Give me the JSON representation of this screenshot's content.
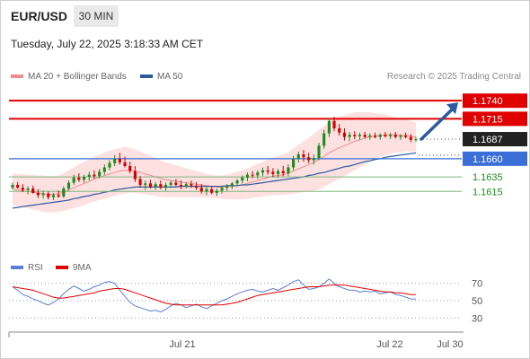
{
  "header": {
    "pair": "EUR/USD",
    "timeframe": "30 MIN",
    "datetime": "Tuesday, July 22, 2025 3:18:33 AM CET"
  },
  "legend": {
    "items": [
      {
        "label": "MA 20 + Bollinger Bands",
        "color": "#f08c8c"
      },
      {
        "label": "MA 50",
        "color": "#2b5aa0"
      }
    ],
    "credit": "Research © 2025 Trading Central"
  },
  "rsi_legend": {
    "items": [
      {
        "label": "RSI",
        "color": "#5b7fd6"
      },
      {
        "label": "9MA",
        "color": "#e00000"
      }
    ]
  },
  "colors": {
    "resistance": "#e00000",
    "pivot": "#3a6fd8",
    "support": "#1f8a1f",
    "bull_candle": "#1f8a1f",
    "bear_candle": "#d00000",
    "band_fill": "#fde0e0",
    "ma50": "#2b5aa0",
    "current": "#222222",
    "arrow": "#2b5aa0"
  },
  "chart_data": [
    {
      "type": "candlestick",
      "title": "EUR/USD 30 MIN",
      "x_ticks": [
        "Jul 21",
        "Jul 22",
        "Jul 30"
      ],
      "ylim": [
        1.153,
        1.176
      ],
      "levels": [
        {
          "value": 1.174,
          "label": "1.1740",
          "kind": "resistance"
        },
        {
          "value": 1.1715,
          "label": "1.1715",
          "kind": "resistance"
        },
        {
          "value": 1.1687,
          "label": "1.1687",
          "kind": "current"
        },
        {
          "value": 1.166,
          "label": "1.1660",
          "kind": "pivot"
        },
        {
          "value": 1.1635,
          "label": "1.1635",
          "kind": "support"
        },
        {
          "value": 1.1615,
          "label": "1.1615",
          "kind": "support"
        }
      ],
      "candles": [
        [
          1.162,
          1.1627,
          1.1618,
          1.1624
        ],
        [
          1.1624,
          1.1628,
          1.1619,
          1.162
        ],
        [
          1.162,
          1.1625,
          1.1614,
          1.1617
        ],
        [
          1.1617,
          1.1622,
          1.1611,
          1.1619
        ],
        [
          1.1619,
          1.1623,
          1.1612,
          1.1613
        ],
        [
          1.1613,
          1.1618,
          1.1606,
          1.161
        ],
        [
          1.161,
          1.1616,
          1.1605,
          1.1612
        ],
        [
          1.1612,
          1.1615,
          1.1604,
          1.1607
        ],
        [
          1.1607,
          1.1613,
          1.1603,
          1.161
        ],
        [
          1.161,
          1.1616,
          1.1606,
          1.1608
        ],
        [
          1.1608,
          1.1622,
          1.1606,
          1.1619
        ],
        [
          1.1619,
          1.163,
          1.1616,
          1.1627
        ],
        [
          1.1627,
          1.1638,
          1.1624,
          1.1634
        ],
        [
          1.1634,
          1.164,
          1.1628,
          1.1631
        ],
        [
          1.1631,
          1.1638,
          1.1627,
          1.1635
        ],
        [
          1.1635,
          1.1642,
          1.163,
          1.1638
        ],
        [
          1.1638,
          1.1644,
          1.1632,
          1.1636
        ],
        [
          1.1636,
          1.1646,
          1.1633,
          1.1642
        ],
        [
          1.1642,
          1.1652,
          1.1638,
          1.1648
        ],
        [
          1.1648,
          1.1658,
          1.1644,
          1.1654
        ],
        [
          1.1654,
          1.1665,
          1.165,
          1.166
        ],
        [
          1.166,
          1.1668,
          1.1652,
          1.1655
        ],
        [
          1.1655,
          1.1663,
          1.1648,
          1.165
        ],
        [
          1.165,
          1.1656,
          1.164,
          1.1643
        ],
        [
          1.1643,
          1.165,
          1.1628,
          1.1632
        ],
        [
          1.1632,
          1.1636,
          1.162,
          1.1624
        ],
        [
          1.1624,
          1.163,
          1.1617,
          1.1626
        ],
        [
          1.1626,
          1.1631,
          1.1619,
          1.1621
        ],
        [
          1.1621,
          1.1628,
          1.1617,
          1.1625
        ],
        [
          1.1625,
          1.163,
          1.1618,
          1.162
        ],
        [
          1.162,
          1.1627,
          1.1616,
          1.1624
        ],
        [
          1.1624,
          1.163,
          1.162,
          1.1627
        ],
        [
          1.1627,
          1.1632,
          1.1622,
          1.1624
        ],
        [
          1.1624,
          1.163,
          1.1618,
          1.1622
        ],
        [
          1.1622,
          1.1628,
          1.1619,
          1.1625
        ],
        [
          1.1625,
          1.163,
          1.162,
          1.1623
        ],
        [
          1.1623,
          1.1628,
          1.1617,
          1.162
        ],
        [
          1.162,
          1.1625,
          1.1612,
          1.1615
        ],
        [
          1.1615,
          1.1621,
          1.161,
          1.1618
        ],
        [
          1.1618,
          1.1622,
          1.1611,
          1.1613
        ],
        [
          1.1613,
          1.1619,
          1.1609,
          1.1616
        ],
        [
          1.1616,
          1.1623,
          1.1612,
          1.162
        ],
        [
          1.162,
          1.1625,
          1.1616,
          1.1622
        ],
        [
          1.1622,
          1.1628,
          1.1618,
          1.1626
        ],
        [
          1.1626,
          1.1632,
          1.1622,
          1.163
        ],
        [
          1.163,
          1.1637,
          1.1626,
          1.1634
        ],
        [
          1.1634,
          1.1641,
          1.1629,
          1.1638
        ],
        [
          1.1638,
          1.1643,
          1.1633,
          1.1637
        ],
        [
          1.1637,
          1.1644,
          1.1632,
          1.1641
        ],
        [
          1.1641,
          1.1648,
          1.1636,
          1.1644
        ],
        [
          1.1644,
          1.165,
          1.1638,
          1.1642
        ],
        [
          1.1642,
          1.1647,
          1.1635,
          1.1639
        ],
        [
          1.1639,
          1.1646,
          1.1634,
          1.1643
        ],
        [
          1.1643,
          1.165,
          1.1636,
          1.164
        ],
        [
          1.164,
          1.1652,
          1.1636,
          1.1648
        ],
        [
          1.1648,
          1.1664,
          1.1644,
          1.166
        ],
        [
          1.166,
          1.167,
          1.1655,
          1.1666
        ],
        [
          1.1666,
          1.1672,
          1.1656,
          1.1662
        ],
        [
          1.1662,
          1.1668,
          1.1654,
          1.1658
        ],
        [
          1.1658,
          1.1666,
          1.1652,
          1.1661
        ],
        [
          1.1661,
          1.1682,
          1.1658,
          1.1678
        ],
        [
          1.1678,
          1.17,
          1.1674,
          1.1695
        ],
        [
          1.1695,
          1.1716,
          1.169,
          1.1712
        ],
        [
          1.1712,
          1.1718,
          1.1698,
          1.1702
        ],
        [
          1.1702,
          1.1708,
          1.1692,
          1.1696
        ],
        [
          1.1696,
          1.1702,
          1.1685,
          1.169
        ],
        [
          1.169,
          1.1697,
          1.1684,
          1.1693
        ],
        [
          1.1693,
          1.1698,
          1.1687,
          1.1691
        ],
        [
          1.1691,
          1.1696,
          1.1686,
          1.1693
        ],
        [
          1.1693,
          1.1697,
          1.1688,
          1.169
        ],
        [
          1.169,
          1.1695,
          1.1686,
          1.1692
        ],
        [
          1.1692,
          1.1696,
          1.1688,
          1.169
        ],
        [
          1.169,
          1.1695,
          1.1686,
          1.1693
        ],
        [
          1.1693,
          1.1697,
          1.1689,
          1.1691
        ],
        [
          1.1691,
          1.1696,
          1.1687,
          1.1693
        ],
        [
          1.1693,
          1.1697,
          1.1688,
          1.169
        ],
        [
          1.169,
          1.1694,
          1.1686,
          1.1692
        ],
        [
          1.1692,
          1.1696,
          1.1688,
          1.169
        ],
        [
          1.169,
          1.1694,
          1.1683,
          1.1686
        ],
        [
          1.1686,
          1.169,
          1.1683,
          1.1687
        ]
      ],
      "ma20": [
        1.1618,
        1.1617,
        1.1616,
        1.1615,
        1.1614,
        1.1613,
        1.1612,
        1.1611,
        1.1611,
        1.1612,
        1.1614,
        1.1617,
        1.162,
        1.1623,
        1.1626,
        1.1629,
        1.1632,
        1.1634,
        1.1637,
        1.1639,
        1.1641,
        1.1643,
        1.1644,
        1.1644,
        1.1643,
        1.1641,
        1.1639,
        1.1637,
        1.1635,
        1.1633,
        1.1631,
        1.163,
        1.1629,
        1.1628,
        1.1627,
        1.1626,
        1.1625,
        1.1624,
        1.1623,
        1.1622,
        1.1621,
        1.1621,
        1.1621,
        1.1622,
        1.1623,
        1.1624,
        1.1626,
        1.1628,
        1.163,
        1.1632,
        1.1634,
        1.1636,
        1.1637,
        1.1638,
        1.164,
        1.1643,
        1.1646,
        1.1649,
        1.1652,
        1.1655,
        1.1659,
        1.1663,
        1.1668,
        1.1672,
        1.1675,
        1.1678,
        1.1681,
        1.1684,
        1.1686,
        1.1688,
        1.169,
        1.1691,
        1.1692,
        1.1693,
        1.1693,
        1.1693,
        1.1692,
        1.1692,
        1.1691,
        1.169
      ],
      "ma50": [
        1.1592,
        1.1593,
        1.1594,
        1.1595,
        1.1596,
        1.1597,
        1.1598,
        1.1599,
        1.16,
        1.1601,
        1.1602,
        1.1603,
        1.1605,
        1.1606,
        1.1608,
        1.1609,
        1.1611,
        1.1612,
        1.1614,
        1.1615,
        1.1617,
        1.1618,
        1.1619,
        1.162,
        1.1621,
        1.1621,
        1.1621,
        1.1621,
        1.1621,
        1.1621,
        1.1621,
        1.1621,
        1.1621,
        1.1622,
        1.1622,
        1.1622,
        1.1622,
        1.1622,
        1.1622,
        1.1622,
        1.1622,
        1.1622,
        1.1623,
        1.1623,
        1.1623,
        1.1624,
        1.1624,
        1.1625,
        1.1626,
        1.1627,
        1.1628,
        1.1629,
        1.163,
        1.1631,
        1.1632,
        1.1633,
        1.1634,
        1.1635,
        1.1637,
        1.1638,
        1.164,
        1.1641,
        1.1643,
        1.1645,
        1.1647,
        1.1649,
        1.165,
        1.1652,
        1.1654,
        1.1656,
        1.1657,
        1.1659,
        1.166,
        1.1662,
        1.1663,
        1.1664,
        1.1665,
        1.1666,
        1.1667,
        1.1668
      ],
      "band_width": [
        0.0022,
        0.0022,
        0.0023,
        0.0023,
        0.0024,
        0.0024,
        0.0025,
        0.0025,
        0.0025,
        0.0025,
        0.0026,
        0.0027,
        0.0028,
        0.0029,
        0.003,
        0.003,
        0.0031,
        0.0031,
        0.0032,
        0.0032,
        0.0032,
        0.0032,
        0.0032,
        0.0031,
        0.003,
        0.0029,
        0.0028,
        0.0027,
        0.0026,
        0.0025,
        0.0024,
        0.0023,
        0.0022,
        0.0021,
        0.002,
        0.0019,
        0.0018,
        0.0017,
        0.0016,
        0.0016,
        0.0016,
        0.0016,
        0.0017,
        0.0018,
        0.0019,
        0.002,
        0.0021,
        0.0022,
        0.0023,
        0.0024,
        0.0025,
        0.0026,
        0.0027,
        0.0028,
        0.0029,
        0.0031,
        0.0033,
        0.0035,
        0.0037,
        0.0039,
        0.0041,
        0.0042,
        0.0043,
        0.0043,
        0.0043,
        0.0042,
        0.0041,
        0.004,
        0.0038,
        0.0036,
        0.0034,
        0.0032,
        0.003,
        0.0028,
        0.0026,
        0.0024,
        0.0023,
        0.0022,
        0.0021,
        0.002
      ],
      "arrow": {
        "from": 1.1687,
        "to": 1.174
      }
    },
    {
      "type": "line",
      "title": "RSI",
      "ylim": [
        20,
        80
      ],
      "y_ticks": [
        70,
        50,
        30
      ],
      "series": [
        {
          "name": "RSI",
          "values": [
            66,
            62,
            57,
            55,
            52,
            50,
            47,
            45,
            48,
            52,
            58,
            63,
            67,
            64,
            61,
            63,
            66,
            68,
            71,
            72,
            70,
            62,
            55,
            48,
            44,
            42,
            40,
            38,
            39,
            37,
            40,
            44,
            47,
            45,
            42,
            44,
            46,
            43,
            41,
            44,
            47,
            50,
            52,
            55,
            58,
            60,
            62,
            63,
            61,
            60,
            62,
            64,
            62,
            65,
            68,
            72,
            74,
            68,
            63,
            64,
            66,
            70,
            75,
            70,
            66,
            64,
            62,
            62,
            60,
            61,
            60,
            61,
            58,
            59,
            60,
            57,
            56,
            54,
            52,
            52
          ]
        },
        {
          "name": "9MA",
          "values": [
            66,
            65,
            64,
            63,
            62,
            60,
            58,
            56,
            54,
            53,
            53,
            54,
            55,
            56,
            57,
            58,
            59,
            61,
            62,
            63,
            64,
            64,
            63,
            61,
            59,
            57,
            55,
            53,
            51,
            49,
            47,
            46,
            45,
            45,
            45,
            45,
            45,
            45,
            45,
            45,
            45,
            45,
            46,
            47,
            48,
            50,
            52,
            54,
            56,
            57,
            58,
            59,
            60,
            61,
            62,
            63,
            64,
            65,
            66,
            66,
            66,
            67,
            68,
            68,
            68,
            68,
            67,
            66,
            65,
            64,
            63,
            62,
            61,
            60,
            60,
            59,
            59,
            58,
            57,
            57
          ]
        }
      ]
    }
  ]
}
